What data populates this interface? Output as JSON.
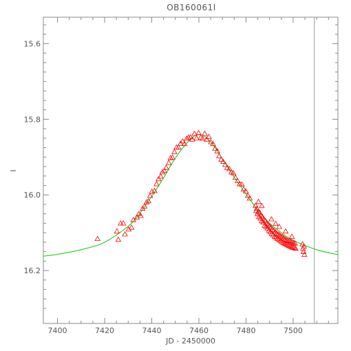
{
  "chart_data": {
    "type": "scatter",
    "title": "OB160061I",
    "xlabel": "JD - 2450000",
    "ylabel": "I",
    "xlim": [
      7394,
      7519
    ],
    "ylim": [
      16.34,
      15.53
    ],
    "y_inverted": true,
    "grid": false,
    "x_ticks": [
      7400,
      7420,
      7440,
      7460,
      7480,
      7500
    ],
    "y_ticks": [
      15.6,
      15.8,
      16.0,
      16.2
    ],
    "vertical_line_x": 7509,
    "colors": {
      "points": "#ff0000",
      "model": "#00cc00",
      "axes": "#888888",
      "text": "#555555",
      "marker_line": "#999999"
    },
    "model_curve": {
      "name": "",
      "x": [
        7394,
        7400,
        7410,
        7420,
        7430,
        7435,
        7440,
        7445,
        7450,
        7455,
        7460,
        7465,
        7470,
        7475,
        7480,
        7485,
        7490,
        7495,
        7500,
        7510,
        7519
      ],
      "y": [
        16.162,
        16.157,
        16.145,
        16.125,
        16.083,
        16.048,
        16.004,
        15.955,
        15.903,
        15.862,
        15.84,
        15.86,
        15.905,
        15.953,
        15.998,
        16.04,
        16.075,
        16.1,
        16.12,
        16.145,
        16.158
      ]
    },
    "series": [
      {
        "name": "",
        "marker": "triangle",
        "x": [
          7417.0,
          7425.2,
          7425.8,
          7426.8,
          7427.9,
          7428.6,
          7430.2,
          7431.4,
          7432.2,
          7433.7,
          7434.5,
          7435.3,
          7436.1,
          7436.9,
          7437.8,
          7438.6,
          7439.3,
          7440.1,
          7441.2,
          7442.0,
          7442.9,
          7443.8,
          7444.5,
          7445.3,
          7446.1,
          7447.2,
          7448.0,
          7448.8,
          7449.6,
          7450.5,
          7451.3,
          7452.2,
          7453.1,
          7453.9,
          7454.8,
          7455.6,
          7456.4,
          7457.2,
          7458.1,
          7459.0,
          7459.9,
          7460.8,
          7461.6,
          7462.5,
          7463.3,
          7464.2,
          7465.1,
          7466.0,
          7466.9,
          7467.8,
          7468.6,
          7469.5,
          7470.3,
          7471.2,
          7472.0,
          7472.9,
          7473.8,
          7474.6,
          7475.5,
          7476.4,
          7477.3,
          7478.2,
          7479.0,
          7479.9,
          7480.8,
          7481.6,
          7484.0,
          7484.3,
          7484.6,
          7484.9,
          7485.2,
          7485.5,
          7485.8,
          7486.1,
          7486.4,
          7486.7,
          7487.0,
          7487.3,
          7487.6,
          7487.9,
          7488.2,
          7488.5,
          7488.8,
          7489.1,
          7489.4,
          7489.7,
          7490.0,
          7490.3,
          7490.6,
          7490.9,
          7491.2,
          7491.5,
          7491.8,
          7492.1,
          7492.4,
          7492.7,
          7493.0,
          7493.3,
          7493.6,
          7493.9,
          7494.2,
          7494.5,
          7494.8,
          7495.1,
          7495.4,
          7495.7,
          7496.0,
          7496.3,
          7496.6,
          7496.9,
          7497.2,
          7497.5,
          7497.8,
          7498.1,
          7498.4,
          7498.7,
          7499.0,
          7499.3,
          7499.6,
          7499.9,
          7500.2,
          7500.5,
          7500.8,
          7501.1,
          7504.0,
          7504.2,
          7504.4,
          7504.6,
          7504.8,
          7485.3,
          7486.7,
          7490.8,
          7494.1,
          7499.5,
          7492.6,
          7496.8
        ],
        "y": [
          16.116,
          16.096,
          16.118,
          16.075,
          16.075,
          16.104,
          16.091,
          16.086,
          16.066,
          16.059,
          16.05,
          16.055,
          16.036,
          16.03,
          16.019,
          16.016,
          16.002,
          15.991,
          15.989,
          15.971,
          15.958,
          15.951,
          15.94,
          15.936,
          15.928,
          15.915,
          15.902,
          15.901,
          15.886,
          15.874,
          15.874,
          15.864,
          15.858,
          15.865,
          15.851,
          15.848,
          15.847,
          15.853,
          15.838,
          15.85,
          15.836,
          15.848,
          15.851,
          15.838,
          15.853,
          15.846,
          15.86,
          15.865,
          15.877,
          15.884,
          15.897,
          15.906,
          15.912,
          15.92,
          15.928,
          15.931,
          15.94,
          15.942,
          15.954,
          15.963,
          15.971,
          15.972,
          15.985,
          15.99,
          16.002,
          16.009,
          16.028,
          16.042,
          16.036,
          16.05,
          16.044,
          16.058,
          16.047,
          16.062,
          16.054,
          16.069,
          16.058,
          16.072,
          16.064,
          16.081,
          16.068,
          16.084,
          16.075,
          16.088,
          16.079,
          16.094,
          16.083,
          16.098,
          16.086,
          16.103,
          16.092,
          16.106,
          16.094,
          16.11,
          16.098,
          16.112,
          16.102,
          16.116,
          16.104,
          16.118,
          16.106,
          16.121,
          16.109,
          16.124,
          16.111,
          16.126,
          16.114,
          16.128,
          16.117,
          16.13,
          16.119,
          16.132,
          16.121,
          16.134,
          16.122,
          16.136,
          16.124,
          16.138,
          16.125,
          16.139,
          16.127,
          16.14,
          16.128,
          16.142,
          16.13,
          16.142,
          16.15,
          16.136,
          16.158,
          16.018,
          16.029,
          16.064,
          16.084,
          16.11,
          16.076,
          16.096
        ]
      }
    ]
  }
}
